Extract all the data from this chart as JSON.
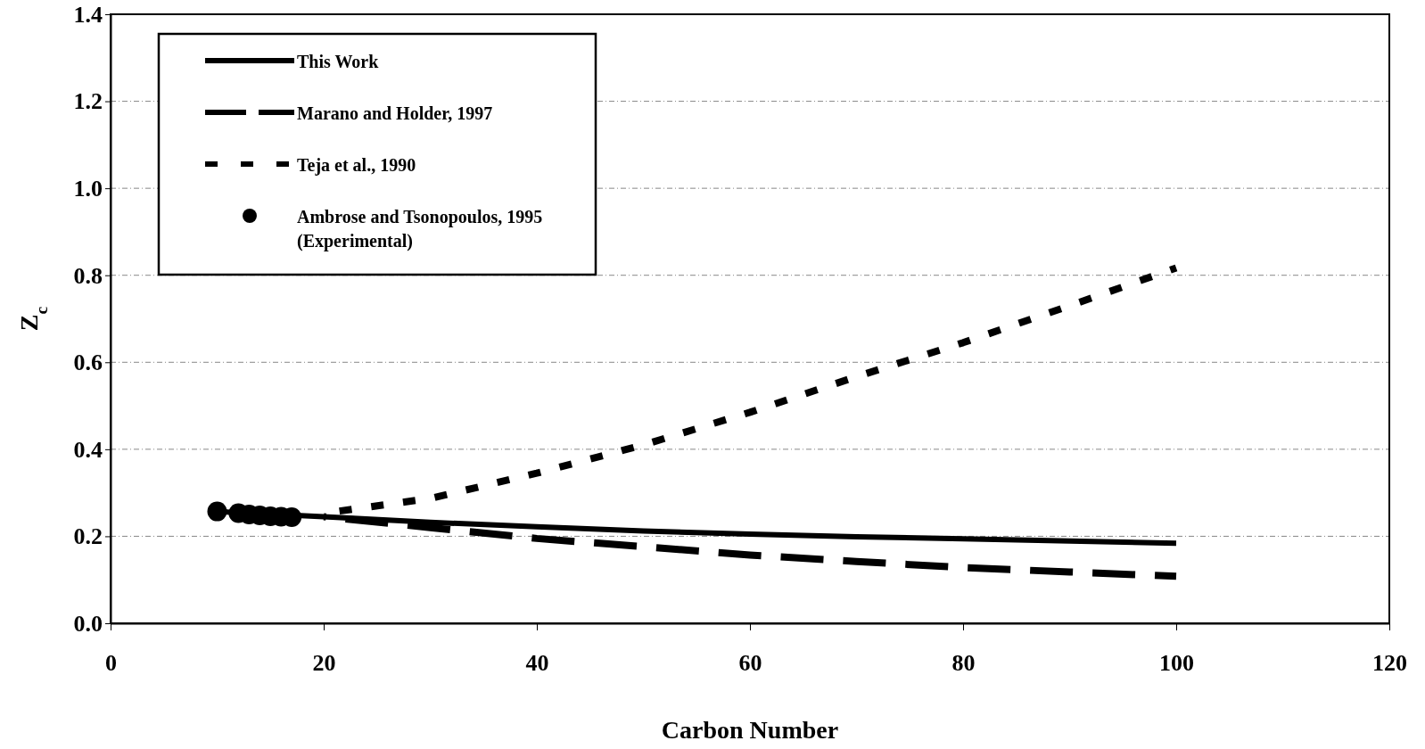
{
  "chart_data": {
    "type": "line",
    "xlabel": "Carbon Number",
    "ylabel": "Z$_{c}$",
    "xlim": [
      0,
      120
    ],
    "xticks": [
      0,
      20,
      40,
      60,
      80,
      100,
      120
    ],
    "ylim": [
      0,
      1.4
    ],
    "yticks": [
      {
        "value": 0,
        "label": "0.0"
      },
      {
        "value": 0.2,
        "label": "0.2"
      },
      {
        "value": 0.4,
        "label": "0.4"
      },
      {
        "value": 0.6,
        "label": "0.6"
      },
      {
        "value": 0.8,
        "label": "0.8"
      },
      {
        "value": 1.0,
        "label": "1.0"
      },
      {
        "value": 1.2,
        "label": "1.2"
      },
      {
        "value": 1.4,
        "label": "1.4"
      }
    ],
    "grid": "y",
    "legend": "top left",
    "series": [
      {
        "name": "This Work",
        "type": "line",
        "line_style": "solid",
        "color": "#000000",
        "x": [
          10,
          20,
          30,
          40,
          50,
          60,
          70,
          80,
          90,
          100
        ],
        "values": [
          0.257,
          0.245,
          0.232,
          0.222,
          0.212,
          0.205,
          0.199,
          0.194,
          0.189,
          0.184
        ]
      },
      {
        "name": "Marano and Holder, 1997",
        "type": "line",
        "line_style": "dashed",
        "color": "#000000",
        "x": [
          20,
          30,
          40,
          50,
          60,
          70,
          80,
          90,
          100
        ],
        "values": [
          0.245,
          0.22,
          0.195,
          0.176,
          0.157,
          0.142,
          0.128,
          0.118,
          0.108
        ]
      },
      {
        "name": "Teja et al., 1990",
        "type": "line",
        "line_style": "dotted",
        "color": "#000000",
        "x": [
          20,
          30,
          40,
          50,
          60,
          70,
          80,
          90,
          100
        ],
        "values": [
          0.253,
          0.287,
          0.345,
          0.41,
          0.485,
          0.567,
          0.645,
          0.73,
          0.817
        ]
      },
      {
        "name": "Ambrose and Tsonopoulos, 1995 (Experimental)",
        "type": "scatter",
        "marker": "circle",
        "color": "#000000",
        "x": [
          10,
          12,
          13,
          14,
          15,
          16,
          17
        ],
        "values": [
          0.257,
          0.253,
          0.25,
          0.248,
          0.246,
          0.245,
          0.244
        ]
      }
    ]
  }
}
